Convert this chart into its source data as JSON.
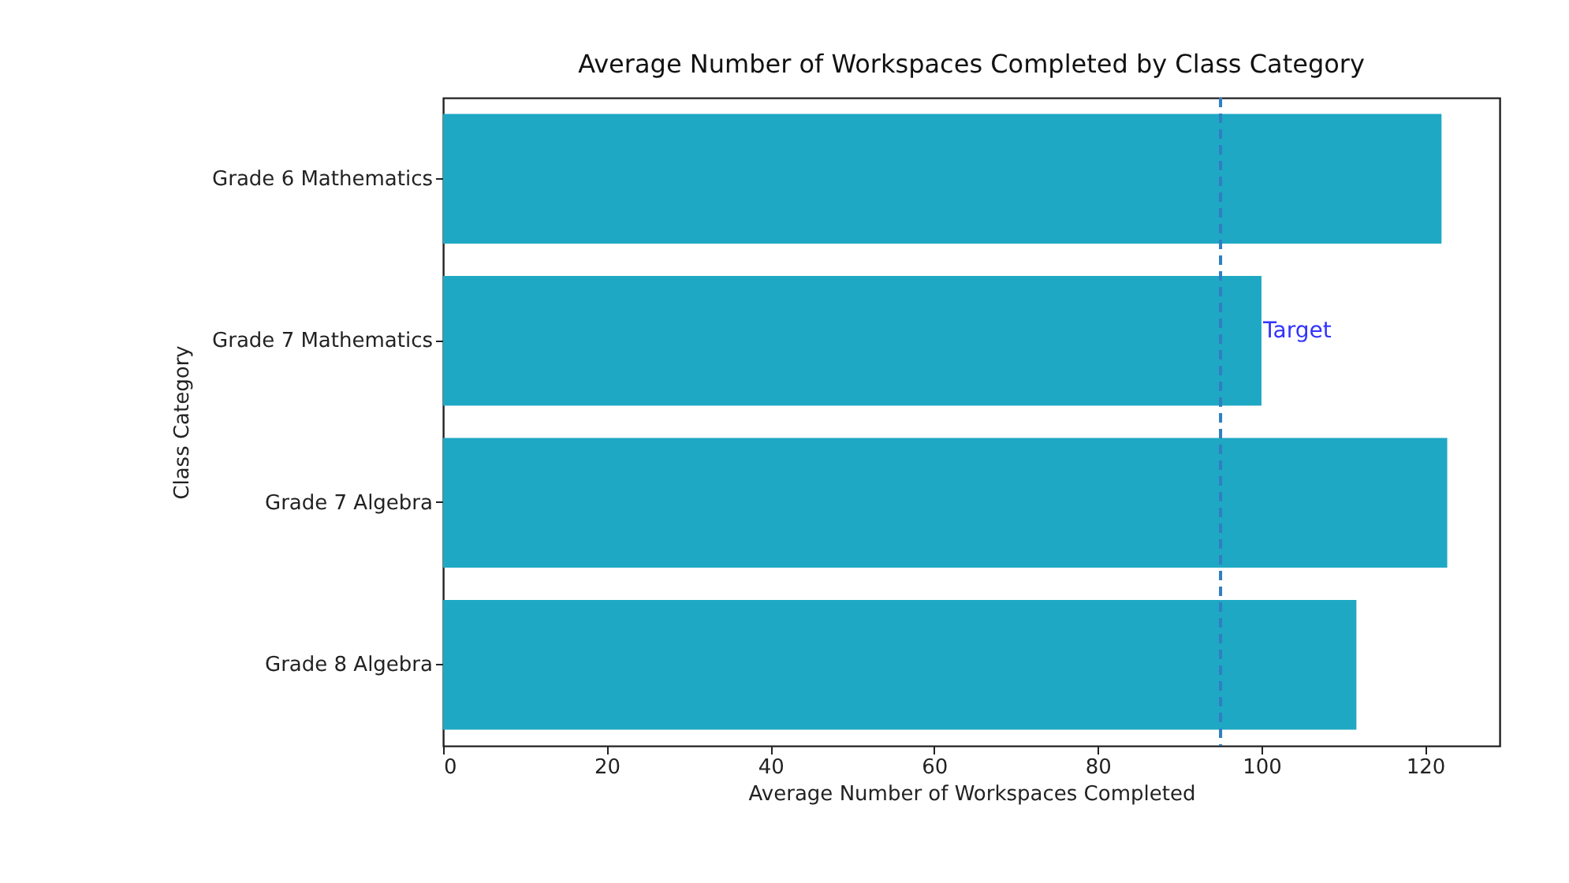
{
  "chart_data": {
    "type": "bar",
    "orientation": "horizontal",
    "title": "Average Number of Workspaces Completed by Class Category",
    "xlabel": "Average Number of Workspaces Completed",
    "ylabel": "Class Category",
    "categories": [
      "Grade 6 Mathematics",
      "Grade 7 Mathematics",
      "Grade 7 Algebra",
      "Grade 8 Algebra"
    ],
    "values": [
      122.0,
      100.0,
      122.7,
      111.6
    ],
    "color": "#1fa8c4",
    "xlim": [
      0,
      129.1
    ],
    "xticks": [
      0,
      20,
      40,
      60,
      80,
      100,
      120
    ],
    "grid": false,
    "ref_lines": [
      {
        "axis": "x",
        "value": 95,
        "label": "Target",
        "color": "#2f7fc1",
        "line_style": "dashed"
      }
    ]
  }
}
